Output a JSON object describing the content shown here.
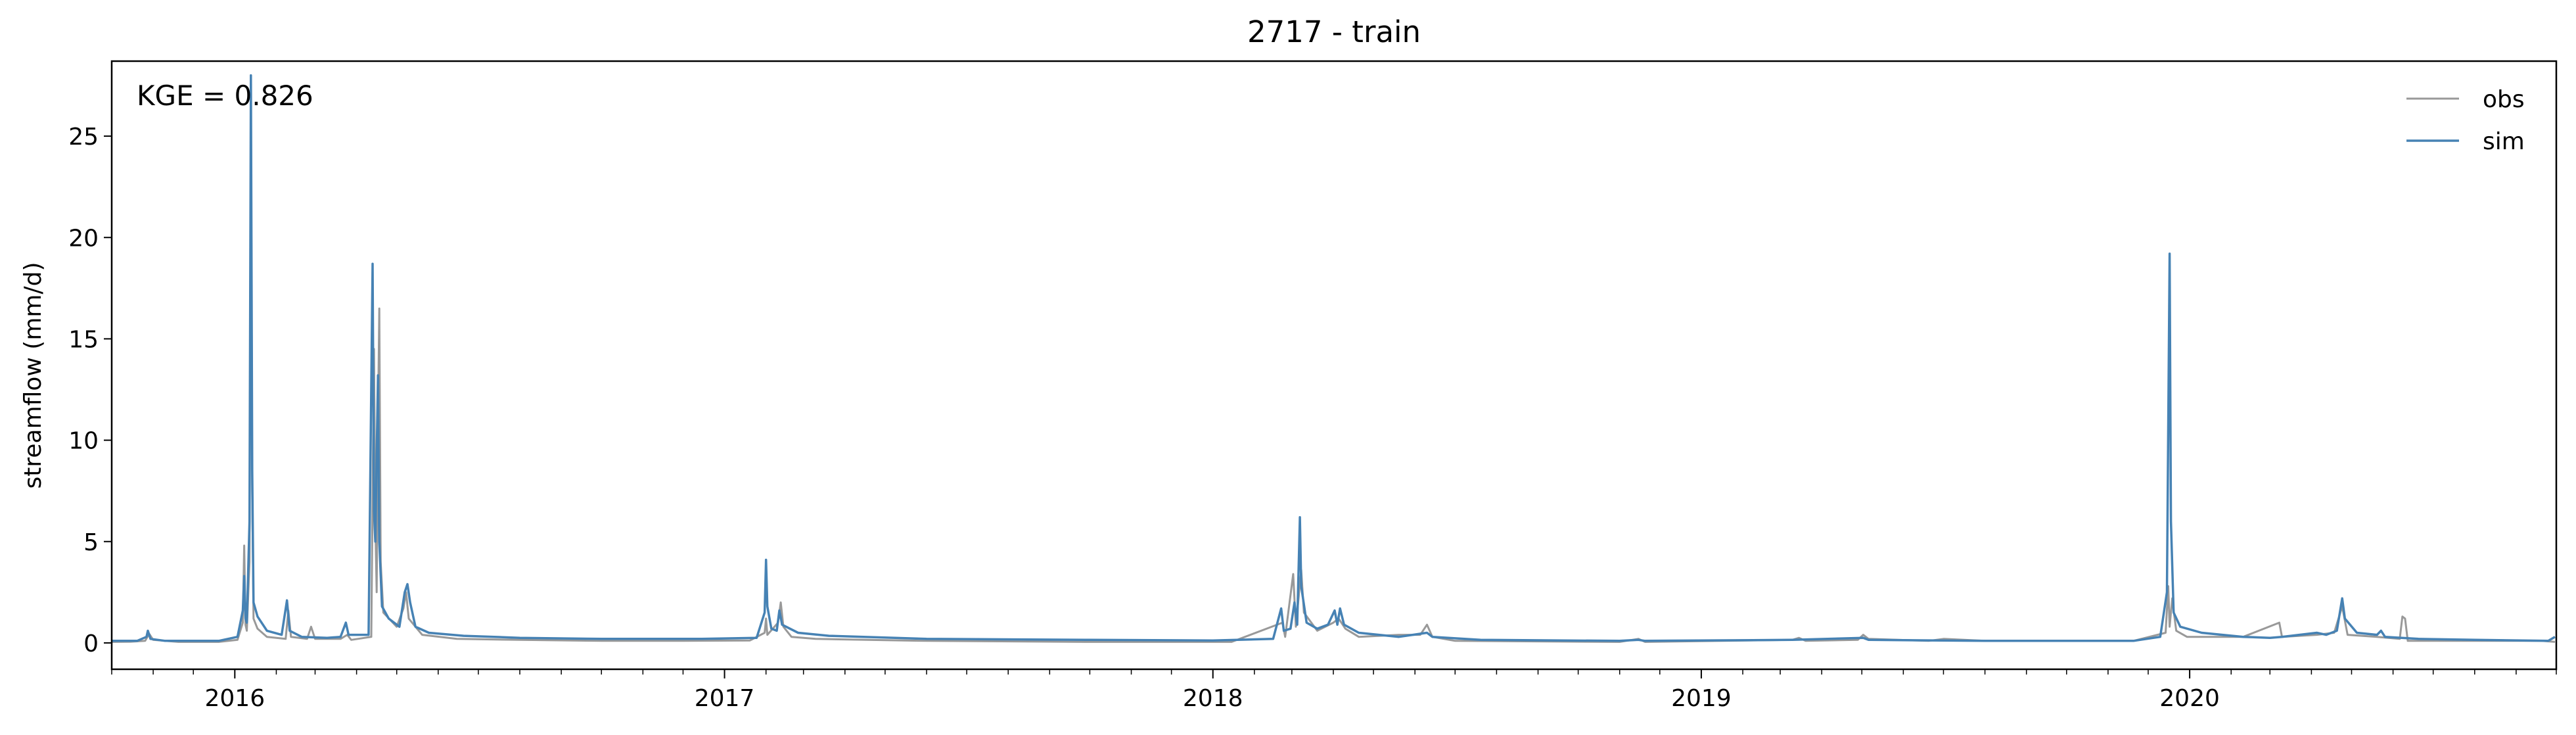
{
  "chart_data": {
    "type": "line",
    "title": "2717 - train",
    "xlabel": "",
    "ylabel": "streamflow (mm/d)",
    "annotation": "KGE = 0.826",
    "xlim": [
      "2015-10-01",
      "2020-09-30"
    ],
    "ylim": [
      -1.3,
      28.7
    ],
    "x_ticks": [
      "2016",
      "2017",
      "2018",
      "2019",
      "2020"
    ],
    "y_ticks": [
      0,
      5,
      10,
      15,
      20,
      25
    ],
    "grid": false,
    "legend_position": "top-right",
    "series": [
      {
        "name": "obs",
        "color": "#999999",
        "points": [
          [
            "2015-10-01",
            0.05
          ],
          [
            "2015-10-15",
            0.06
          ],
          [
            "2015-10-26",
            0.1
          ],
          [
            "2015-10-29",
            0.45
          ],
          [
            "2015-11-01",
            0.15
          ],
          [
            "2015-11-20",
            0.05
          ],
          [
            "2015-12-20",
            0.05
          ],
          [
            "2016-01-03",
            0.15
          ],
          [
            "2016-01-07",
            1.0
          ],
          [
            "2016-01-08",
            4.8
          ],
          [
            "2016-01-09",
            0.9
          ],
          [
            "2016-01-10",
            0.6
          ],
          [
            "2016-01-12",
            4.0
          ],
          [
            "2016-01-13",
            27.0
          ],
          [
            "2016-01-14",
            7.5
          ],
          [
            "2016-01-15",
            1.2
          ],
          [
            "2016-01-18",
            0.7
          ],
          [
            "2016-01-25",
            0.3
          ],
          [
            "2016-02-08",
            0.2
          ],
          [
            "2016-02-10",
            1.6
          ],
          [
            "2016-02-12",
            0.3
          ],
          [
            "2016-02-24",
            0.2
          ],
          [
            "2016-02-27",
            0.8
          ],
          [
            "2016-03-01",
            0.2
          ],
          [
            "2016-03-20",
            0.2
          ],
          [
            "2016-03-25",
            0.4
          ],
          [
            "2016-03-28",
            0.15
          ],
          [
            "2016-04-12",
            0.3
          ],
          [
            "2016-04-14",
            14.5
          ],
          [
            "2016-04-15",
            6.0
          ],
          [
            "2016-04-16",
            2.5
          ],
          [
            "2016-04-17",
            11.0
          ],
          [
            "2016-04-18",
            16.5
          ],
          [
            "2016-04-19",
            4.0
          ],
          [
            "2016-04-21",
            1.5
          ],
          [
            "2016-05-01",
            0.8
          ],
          [
            "2016-05-06",
            1.7
          ],
          [
            "2016-05-08",
            2.5
          ],
          [
            "2016-05-10",
            1.2
          ],
          [
            "2016-05-20",
            0.4
          ],
          [
            "2016-06-15",
            0.2
          ],
          [
            "2016-08-01",
            0.15
          ],
          [
            "2016-10-01",
            0.1
          ],
          [
            "2016-12-01",
            0.1
          ],
          [
            "2017-01-20",
            0.12
          ],
          [
            "2017-01-31",
            0.5
          ],
          [
            "2017-02-01",
            1.2
          ],
          [
            "2017-02-02",
            0.4
          ],
          [
            "2017-02-10",
            1.0
          ],
          [
            "2017-02-12",
            2.0
          ],
          [
            "2017-02-14",
            0.8
          ],
          [
            "2017-02-20",
            0.3
          ],
          [
            "2017-03-10",
            0.2
          ],
          [
            "2017-06-01",
            0.1
          ],
          [
            "2017-10-01",
            0.05
          ],
          [
            "2018-01-15",
            0.05
          ],
          [
            "2018-02-22",
            1.0
          ],
          [
            "2018-02-24",
            0.3
          ],
          [
            "2018-03-02",
            3.4
          ],
          [
            "2018-03-04",
            0.8
          ],
          [
            "2018-03-08",
            3.6
          ],
          [
            "2018-03-10",
            1.5
          ],
          [
            "2018-03-20",
            0.6
          ],
          [
            "2018-04-01",
            1.0
          ],
          [
            "2018-04-05",
            1.2
          ],
          [
            "2018-04-10",
            0.7
          ],
          [
            "2018-04-20",
            0.3
          ],
          [
            "2018-05-20",
            0.4
          ],
          [
            "2018-06-05",
            0.4
          ],
          [
            "2018-06-10",
            0.9
          ],
          [
            "2018-06-14",
            0.3
          ],
          [
            "2018-07-01",
            0.1
          ],
          [
            "2018-11-01",
            0.05
          ],
          [
            "2018-11-15",
            0.2
          ],
          [
            "2018-11-20",
            0.05
          ],
          [
            "2019-03-10",
            0.15
          ],
          [
            "2019-03-15",
            0.25
          ],
          [
            "2019-03-20",
            0.1
          ],
          [
            "2019-04-28",
            0.15
          ],
          [
            "2019-05-02",
            0.4
          ],
          [
            "2019-05-06",
            0.2
          ],
          [
            "2019-06-20",
            0.1
          ],
          [
            "2019-07-01",
            0.2
          ],
          [
            "2019-08-01",
            0.1
          ],
          [
            "2019-11-20",
            0.1
          ],
          [
            "2019-12-14",
            0.5
          ],
          [
            "2019-12-16",
            2.8
          ],
          [
            "2019-12-17",
            0.8
          ],
          [
            "2019-12-19",
            2.2
          ],
          [
            "2019-12-20",
            1.6
          ],
          [
            "2019-12-22",
            0.6
          ],
          [
            "2019-12-30",
            0.3
          ],
          [
            "2020-02-10",
            0.3
          ],
          [
            "2020-03-08",
            1.0
          ],
          [
            "2020-03-10",
            0.3
          ],
          [
            "2020-04-05",
            0.4
          ],
          [
            "2020-04-18",
            0.5
          ],
          [
            "2020-04-24",
            1.8
          ],
          [
            "2020-04-28",
            0.4
          ],
          [
            "2020-05-20",
            0.3
          ],
          [
            "2020-06-06",
            0.2
          ],
          [
            "2020-06-08",
            1.3
          ],
          [
            "2020-06-10",
            1.2
          ],
          [
            "2020-06-12",
            0.1
          ],
          [
            "2020-07-15",
            0.1
          ],
          [
            "2020-09-20",
            0.1
          ],
          [
            "2020-09-30",
            0.05
          ]
        ]
      },
      {
        "name": "sim",
        "color": "#4682b4",
        "points": [
          [
            "2015-10-01",
            0.1
          ],
          [
            "2015-10-20",
            0.1
          ],
          [
            "2015-10-27",
            0.3
          ],
          [
            "2015-10-28",
            0.6
          ],
          [
            "2015-10-30",
            0.2
          ],
          [
            "2015-11-10",
            0.1
          ],
          [
            "2015-12-20",
            0.1
          ],
          [
            "2016-01-03",
            0.3
          ],
          [
            "2016-01-07",
            1.6
          ],
          [
            "2016-01-08",
            3.3
          ],
          [
            "2016-01-09",
            1.2
          ],
          [
            "2016-01-10",
            1.0
          ],
          [
            "2016-01-12",
            6.0
          ],
          [
            "2016-01-13",
            28.0
          ],
          [
            "2016-01-14",
            8.5
          ],
          [
            "2016-01-15",
            2.0
          ],
          [
            "2016-01-18",
            1.3
          ],
          [
            "2016-01-25",
            0.6
          ],
          [
            "2016-02-05",
            0.4
          ],
          [
            "2016-02-09",
            2.1
          ],
          [
            "2016-02-11",
            0.6
          ],
          [
            "2016-02-20",
            0.3
          ],
          [
            "2016-03-10",
            0.25
          ],
          [
            "2016-03-20",
            0.3
          ],
          [
            "2016-03-24",
            1.0
          ],
          [
            "2016-03-26",
            0.4
          ],
          [
            "2016-04-10",
            0.4
          ],
          [
            "2016-04-13",
            18.7
          ],
          [
            "2016-04-14",
            6.5
          ],
          [
            "2016-04-15",
            5.0
          ],
          [
            "2016-04-17",
            13.2
          ],
          [
            "2016-04-18",
            5.0
          ],
          [
            "2016-04-20",
            1.8
          ],
          [
            "2016-04-25",
            1.2
          ],
          [
            "2016-05-03",
            0.8
          ],
          [
            "2016-05-07",
            2.5
          ],
          [
            "2016-05-09",
            2.9
          ],
          [
            "2016-05-11",
            2.0
          ],
          [
            "2016-05-15",
            0.8
          ],
          [
            "2016-05-25",
            0.5
          ],
          [
            "2016-06-20",
            0.35
          ],
          [
            "2016-08-01",
            0.25
          ],
          [
            "2016-10-01",
            0.2
          ],
          [
            "2016-12-15",
            0.2
          ],
          [
            "2017-01-25",
            0.25
          ],
          [
            "2017-01-31",
            1.5
          ],
          [
            "2017-02-01",
            4.1
          ],
          [
            "2017-02-02",
            1.8
          ],
          [
            "2017-02-05",
            0.7
          ],
          [
            "2017-02-09",
            0.6
          ],
          [
            "2017-02-11",
            1.6
          ],
          [
            "2017-02-13",
            0.9
          ],
          [
            "2017-02-25",
            0.5
          ],
          [
            "2017-03-20",
            0.35
          ],
          [
            "2017-06-01",
            0.2
          ],
          [
            "2017-10-01",
            0.15
          ],
          [
            "2018-01-01",
            0.12
          ],
          [
            "2018-02-15",
            0.2
          ],
          [
            "2018-02-21",
            1.7
          ],
          [
            "2018-02-23",
            0.6
          ],
          [
            "2018-02-28",
            0.7
          ],
          [
            "2018-03-03",
            2.0
          ],
          [
            "2018-03-05",
            0.9
          ],
          [
            "2018-03-07",
            6.2
          ],
          [
            "2018-03-08",
            2.8
          ],
          [
            "2018-03-12",
            1.0
          ],
          [
            "2018-03-20",
            0.7
          ],
          [
            "2018-03-28",
            0.9
          ],
          [
            "2018-04-02",
            1.6
          ],
          [
            "2018-04-04",
            0.9
          ],
          [
            "2018-04-06",
            1.7
          ],
          [
            "2018-04-09",
            0.9
          ],
          [
            "2018-04-20",
            0.5
          ],
          [
            "2018-05-20",
            0.3
          ],
          [
            "2018-06-10",
            0.5
          ],
          [
            "2018-06-14",
            0.3
          ],
          [
            "2018-07-20",
            0.15
          ],
          [
            "2018-11-01",
            0.1
          ],
          [
            "2018-11-15",
            0.15
          ],
          [
            "2018-11-20",
            0.1
          ],
          [
            "2019-03-10",
            0.15
          ],
          [
            "2019-05-02",
            0.25
          ],
          [
            "2019-05-06",
            0.15
          ],
          [
            "2019-08-01",
            0.1
          ],
          [
            "2019-11-20",
            0.1
          ],
          [
            "2019-12-10",
            0.3
          ],
          [
            "2019-12-15",
            2.5
          ],
          [
            "2019-12-17",
            19.2
          ],
          [
            "2019-12-18",
            6.0
          ],
          [
            "2019-12-20",
            1.5
          ],
          [
            "2019-12-25",
            0.8
          ],
          [
            "2020-01-10",
            0.5
          ],
          [
            "2020-02-10",
            0.3
          ],
          [
            "2020-03-01",
            0.25
          ],
          [
            "2020-03-10",
            0.3
          ],
          [
            "2020-04-05",
            0.5
          ],
          [
            "2020-04-12",
            0.4
          ],
          [
            "2020-04-20",
            0.6
          ],
          [
            "2020-04-24",
            2.2
          ],
          [
            "2020-04-26",
            1.2
          ],
          [
            "2020-05-05",
            0.5
          ],
          [
            "2020-05-20",
            0.4
          ],
          [
            "2020-05-23",
            0.6
          ],
          [
            "2020-05-26",
            0.3
          ],
          [
            "2020-06-20",
            0.2
          ],
          [
            "2020-08-01",
            0.15
          ],
          [
            "2020-09-25",
            0.1
          ],
          [
            "2020-09-30",
            0.3
          ]
        ]
      }
    ]
  }
}
